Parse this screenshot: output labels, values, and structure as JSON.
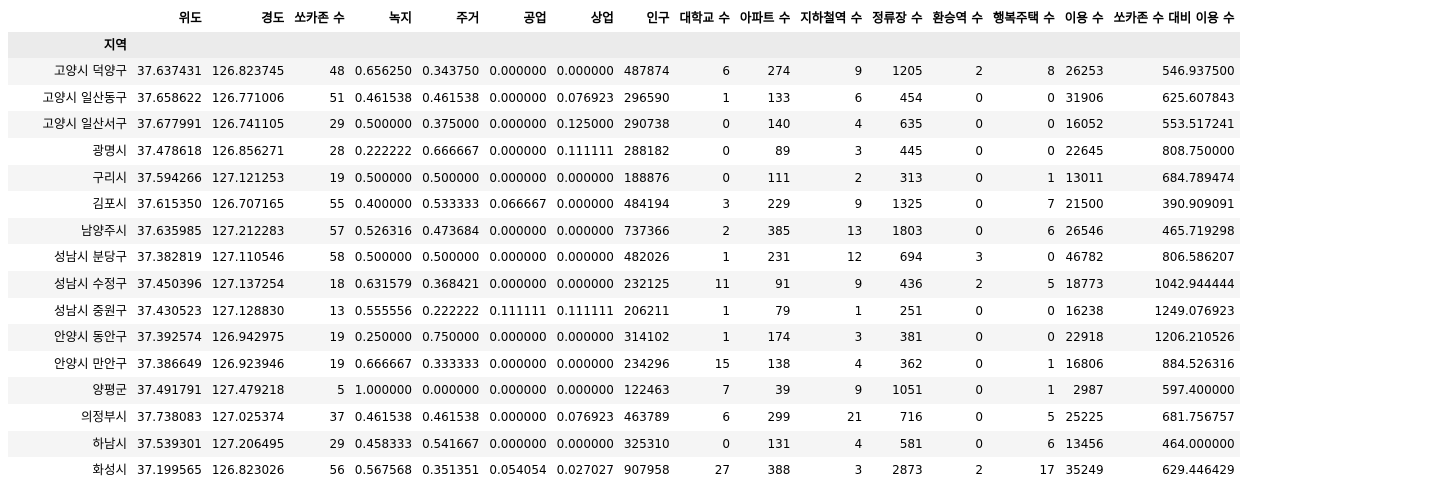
{
  "table": {
    "columns": [
      "위도",
      "경도",
      "쏘카존 수",
      "녹지",
      "주거",
      "공업",
      "상업",
      "인구",
      "대학교 수",
      "아파트 수",
      "지하철역 수",
      "정류장 수",
      "환승역 수",
      "행복주택 수",
      "이용 수",
      "쏘카존 수 대비 이용 수"
    ],
    "index_name": "지역",
    "rows": [
      {
        "name": "고양시 덕양구",
        "values": [
          "37.637431",
          "126.823745",
          "48",
          "0.656250",
          "0.343750",
          "0.000000",
          "0.000000",
          "487874",
          "6",
          "274",
          "9",
          "1205",
          "2",
          "8",
          "26253",
          "546.937500"
        ]
      },
      {
        "name": "고양시 일산동구",
        "values": [
          "37.658622",
          "126.771006",
          "51",
          "0.461538",
          "0.461538",
          "0.000000",
          "0.076923",
          "296590",
          "1",
          "133",
          "6",
          "454",
          "0",
          "0",
          "31906",
          "625.607843"
        ]
      },
      {
        "name": "고양시 일산서구",
        "values": [
          "37.677991",
          "126.741105",
          "29",
          "0.500000",
          "0.375000",
          "0.000000",
          "0.125000",
          "290738",
          "0",
          "140",
          "4",
          "635",
          "0",
          "0",
          "16052",
          "553.517241"
        ]
      },
      {
        "name": "광명시",
        "values": [
          "37.478618",
          "126.856271",
          "28",
          "0.222222",
          "0.666667",
          "0.000000",
          "0.111111",
          "288182",
          "0",
          "89",
          "3",
          "445",
          "0",
          "0",
          "22645",
          "808.750000"
        ]
      },
      {
        "name": "구리시",
        "values": [
          "37.594266",
          "127.121253",
          "19",
          "0.500000",
          "0.500000",
          "0.000000",
          "0.000000",
          "188876",
          "0",
          "111",
          "2",
          "313",
          "0",
          "1",
          "13011",
          "684.789474"
        ]
      },
      {
        "name": "김포시",
        "values": [
          "37.615350",
          "126.707165",
          "55",
          "0.400000",
          "0.533333",
          "0.066667",
          "0.000000",
          "484194",
          "3",
          "229",
          "9",
          "1325",
          "0",
          "7",
          "21500",
          "390.909091"
        ]
      },
      {
        "name": "남양주시",
        "values": [
          "37.635985",
          "127.212283",
          "57",
          "0.526316",
          "0.473684",
          "0.000000",
          "0.000000",
          "737366",
          "2",
          "385",
          "13",
          "1803",
          "0",
          "6",
          "26546",
          "465.719298"
        ]
      },
      {
        "name": "성남시 분당구",
        "values": [
          "37.382819",
          "127.110546",
          "58",
          "0.500000",
          "0.500000",
          "0.000000",
          "0.000000",
          "482026",
          "1",
          "231",
          "12",
          "694",
          "3",
          "0",
          "46782",
          "806.586207"
        ]
      },
      {
        "name": "성남시 수정구",
        "values": [
          "37.450396",
          "127.137254",
          "18",
          "0.631579",
          "0.368421",
          "0.000000",
          "0.000000",
          "232125",
          "11",
          "91",
          "9",
          "436",
          "2",
          "5",
          "18773",
          "1042.944444"
        ]
      },
      {
        "name": "성남시 중원구",
        "values": [
          "37.430523",
          "127.128830",
          "13",
          "0.555556",
          "0.222222",
          "0.111111",
          "0.111111",
          "206211",
          "1",
          "79",
          "1",
          "251",
          "0",
          "0",
          "16238",
          "1249.076923"
        ]
      },
      {
        "name": "안양시 동안구",
        "values": [
          "37.392574",
          "126.942975",
          "19",
          "0.250000",
          "0.750000",
          "0.000000",
          "0.000000",
          "314102",
          "1",
          "174",
          "3",
          "381",
          "0",
          "0",
          "22918",
          "1206.210526"
        ]
      },
      {
        "name": "안양시 만안구",
        "values": [
          "37.386649",
          "126.923946",
          "19",
          "0.666667",
          "0.333333",
          "0.000000",
          "0.000000",
          "234296",
          "15",
          "138",
          "4",
          "362",
          "0",
          "1",
          "16806",
          "884.526316"
        ]
      },
      {
        "name": "양평군",
        "values": [
          "37.491791",
          "127.479218",
          "5",
          "1.000000",
          "0.000000",
          "0.000000",
          "0.000000",
          "122463",
          "7",
          "39",
          "9",
          "1051",
          "0",
          "1",
          "2987",
          "597.400000"
        ]
      },
      {
        "name": "의정부시",
        "values": [
          "37.738083",
          "127.025374",
          "37",
          "0.461538",
          "0.461538",
          "0.000000",
          "0.076923",
          "463789",
          "6",
          "299",
          "21",
          "716",
          "0",
          "5",
          "25225",
          "681.756757"
        ]
      },
      {
        "name": "하남시",
        "values": [
          "37.539301",
          "127.206495",
          "29",
          "0.458333",
          "0.541667",
          "0.000000",
          "0.000000",
          "325310",
          "0",
          "131",
          "4",
          "581",
          "0",
          "6",
          "13456",
          "464.000000"
        ]
      },
      {
        "name": "화성시",
        "values": [
          "37.199565",
          "126.823026",
          "56",
          "0.567568",
          "0.351351",
          "0.054054",
          "0.027027",
          "907958",
          "27",
          "388",
          "3",
          "2873",
          "2",
          "17",
          "35249",
          "629.446429"
        ]
      }
    ]
  }
}
